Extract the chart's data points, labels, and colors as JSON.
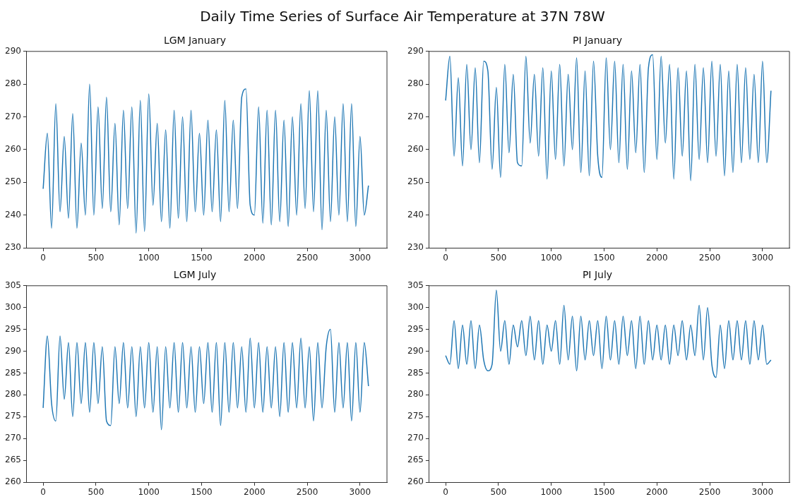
{
  "chart_data": [
    {
      "type": "line",
      "title": "LGM January",
      "annotations": [
        "Daily Time Series of Surface Air Temperature at 37N 78W"
      ],
      "x": [
        0,
        40,
        80,
        120,
        160,
        200,
        240,
        280,
        320,
        360,
        400,
        440,
        480,
        520,
        560,
        600,
        640,
        680,
        720,
        760,
        800,
        840,
        880,
        920,
        960,
        1000,
        1040,
        1080,
        1120,
        1160,
        1200,
        1240,
        1280,
        1320,
        1360,
        1400,
        1440,
        1480,
        1520,
        1560,
        1600,
        1640,
        1680,
        1720,
        1760,
        1800,
        1840,
        1880,
        1920,
        1960,
        2000,
        2040,
        2080,
        2120,
        2160,
        2200,
        2240,
        2280,
        2320,
        2360,
        2400,
        2440,
        2480,
        2520,
        2560,
        2600,
        2640,
        2680,
        2720,
        2760,
        2800,
        2840,
        2880,
        2920,
        2960,
        3000,
        3040,
        3080
      ],
      "series": [
        {
          "color": "#1f77b4",
          "values": [
            248,
            265,
            236,
            274,
            241,
            264,
            239,
            271,
            236,
            262,
            240,
            280,
            240,
            273,
            242,
            276,
            241,
            268,
            237,
            272,
            242,
            273,
            234.5,
            275,
            235,
            277,
            243,
            268,
            238,
            266,
            236,
            272,
            239,
            270,
            238,
            272,
            241,
            265,
            240,
            269,
            241,
            266,
            238,
            275,
            241,
            269,
            242,
            276,
            278.5,
            243,
            240,
            273,
            237.5,
            272,
            237,
            272,
            238,
            269,
            236.5,
            270,
            240,
            274,
            242,
            278,
            241,
            278,
            235.5,
            272,
            238,
            270,
            240,
            274,
            238,
            274,
            236.5,
            264,
            240,
            249
          ]
        }
      ],
      "xlim": [
        -155,
        3255
      ],
      "xticks": [
        0,
        500,
        1000,
        1500,
        2000,
        2500,
        3000
      ],
      "ylim": [
        230,
        290
      ],
      "yticks": [
        230,
        240,
        250,
        260,
        270,
        280,
        290
      ]
    },
    {
      "type": "line",
      "title": "PI January",
      "x": [
        0,
        40,
        80,
        120,
        160,
        200,
        240,
        280,
        320,
        360,
        400,
        440,
        480,
        520,
        560,
        600,
        640,
        680,
        720,
        760,
        800,
        840,
        880,
        920,
        960,
        1000,
        1040,
        1080,
        1120,
        1160,
        1200,
        1240,
        1280,
        1320,
        1360,
        1400,
        1440,
        1480,
        1520,
        1560,
        1600,
        1640,
        1680,
        1720,
        1760,
        1800,
        1840,
        1880,
        1920,
        1960,
        2000,
        2040,
        2080,
        2120,
        2160,
        2200,
        2240,
        2280,
        2320,
        2360,
        2400,
        2440,
        2480,
        2520,
        2560,
        2600,
        2640,
        2680,
        2720,
        2760,
        2800,
        2840,
        2880,
        2920,
        2960,
        3000,
        3040,
        3080
      ],
      "series": [
        {
          "color": "#1f77b4",
          "values": [
            275,
            288.5,
            258,
            282,
            255,
            286,
            260,
            285,
            256,
            287,
            284,
            254,
            279,
            251.5,
            286,
            259,
            283,
            256,
            255,
            288.5,
            262,
            283,
            258,
            285,
            251,
            284,
            257,
            286,
            255,
            283,
            260,
            288,
            253,
            284,
            252,
            287,
            258,
            251.5,
            288,
            260,
            287,
            256,
            286,
            254,
            284,
            259,
            286,
            253,
            285,
            289,
            257,
            288.5,
            262,
            286,
            251,
            285,
            258,
            284,
            250.5,
            286,
            257,
            285,
            256,
            287,
            258,
            286,
            252,
            284,
            253,
            286,
            256,
            285,
            257,
            283,
            256,
            287,
            256,
            278
          ]
        }
      ],
      "xlim": [
        -155,
        3255
      ],
      "xticks": [
        0,
        500,
        1000,
        1500,
        2000,
        2500,
        3000
      ],
      "ylim": [
        230,
        290
      ],
      "yticks": [
        230,
        240,
        250,
        260,
        270,
        280,
        290
      ]
    },
    {
      "type": "line",
      "title": "LGM July",
      "x": [
        0,
        40,
        80,
        120,
        160,
        200,
        240,
        280,
        320,
        360,
        400,
        440,
        480,
        520,
        560,
        600,
        640,
        680,
        720,
        760,
        800,
        840,
        880,
        920,
        960,
        1000,
        1040,
        1080,
        1120,
        1160,
        1200,
        1240,
        1280,
        1320,
        1360,
        1400,
        1440,
        1480,
        1520,
        1560,
        1600,
        1640,
        1680,
        1720,
        1760,
        1800,
        1840,
        1880,
        1920,
        1960,
        2000,
        2040,
        2080,
        2120,
        2160,
        2200,
        2240,
        2280,
        2320,
        2360,
        2400,
        2440,
        2480,
        2520,
        2560,
        2600,
        2640,
        2680,
        2720,
        2760,
        2800,
        2840,
        2880,
        2920,
        2960,
        3000,
        3040,
        3080
      ],
      "series": [
        {
          "color": "#1f77b4",
          "values": [
            277,
            293.5,
            278,
            274,
            293.5,
            279,
            292,
            275,
            292,
            278,
            292,
            276,
            292,
            278,
            291,
            274,
            273,
            291,
            278,
            292,
            277,
            291,
            275,
            291,
            277,
            292,
            276,
            291,
            272,
            291,
            277,
            292,
            276,
            292,
            277,
            291,
            276,
            291,
            278,
            292,
            276,
            292,
            273,
            292,
            276,
            292,
            277,
            291,
            276,
            293,
            277,
            292,
            276,
            291,
            277,
            291,
            275,
            292,
            276,
            292,
            277,
            293,
            277,
            291,
            274,
            292,
            277,
            291,
            295,
            276,
            292,
            277,
            292,
            274,
            292,
            276,
            292,
            282
          ]
        }
      ],
      "xlim": [
        -155,
        3255
      ],
      "xticks": [
        0,
        500,
        1000,
        1500,
        2000,
        2500,
        3000
      ],
      "ylim": [
        260,
        305
      ],
      "yticks": [
        260,
        265,
        270,
        275,
        280,
        285,
        290,
        295,
        300,
        305
      ]
    },
    {
      "type": "line",
      "title": "PI July",
      "x": [
        0,
        40,
        80,
        120,
        160,
        200,
        240,
        280,
        320,
        360,
        400,
        440,
        480,
        520,
        560,
        600,
        640,
        680,
        720,
        760,
        800,
        840,
        880,
        920,
        960,
        1000,
        1040,
        1080,
        1120,
        1160,
        1200,
        1240,
        1280,
        1320,
        1360,
        1400,
        1440,
        1480,
        1520,
        1560,
        1600,
        1640,
        1680,
        1720,
        1760,
        1800,
        1840,
        1880,
        1920,
        1960,
        2000,
        2040,
        2080,
        2120,
        2160,
        2200,
        2240,
        2280,
        2320,
        2360,
        2400,
        2440,
        2480,
        2520,
        2560,
        2600,
        2640,
        2680,
        2720,
        2760,
        2800,
        2840,
        2880,
        2920,
        2960,
        3000,
        3040,
        3080
      ],
      "series": [
        {
          "color": "#1f77b4",
          "values": [
            289,
            287,
            297,
            286,
            296,
            287,
            297,
            286,
            296,
            288,
            285.5,
            287,
            304,
            290,
            297,
            287,
            296,
            291,
            297,
            289,
            298,
            288,
            297,
            287,
            296,
            290,
            297,
            287,
            300.5,
            288,
            298,
            285.5,
            298,
            288,
            297,
            289,
            297,
            286,
            298,
            288,
            297,
            287,
            298,
            289,
            297,
            286,
            298,
            287,
            297,
            288,
            296,
            288,
            296,
            287,
            296,
            289,
            297,
            288,
            296,
            289,
            300.5,
            288,
            300,
            287,
            284,
            296,
            286,
            297,
            288,
            297,
            288,
            297,
            287,
            297,
            288,
            296,
            287,
            288
          ]
        }
      ],
      "xlim": [
        -155,
        3255
      ],
      "xticks": [
        0,
        500,
        1000,
        1500,
        2000,
        2500,
        3000
      ],
      "ylim": [
        260,
        305
      ],
      "yticks": [
        260,
        265,
        270,
        275,
        280,
        285,
        290,
        295,
        300,
        305
      ]
    }
  ]
}
